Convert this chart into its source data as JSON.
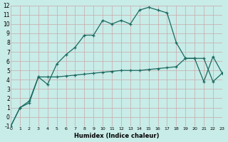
{
  "xlabel": "Humidex (Indice chaleur)",
  "bg_color": "#c8ece8",
  "grid_color": "#c8a8a8",
  "line_color": "#1a6a60",
  "x_curve1": [
    0,
    1,
    2,
    3,
    4,
    5,
    6,
    7,
    8,
    9,
    10,
    11,
    12,
    13,
    14,
    15,
    16,
    17,
    18,
    19,
    20,
    21,
    22,
    23
  ],
  "y_curve1": [
    -1,
    1,
    1.5,
    4.3,
    3.5,
    5.7,
    6.7,
    7.5,
    8.8,
    8.8,
    10.4,
    10.0,
    10.4,
    10.0,
    11.5,
    11.8,
    11.5,
    11.2,
    8.0,
    6.3,
    6.3,
    3.8,
    6.5,
    4.7
  ],
  "x_curve2": [
    0,
    1,
    2,
    3,
    4,
    5,
    6,
    7,
    8,
    9,
    10,
    11,
    12,
    13,
    14,
    15,
    16,
    17,
    18,
    19,
    20,
    21,
    22,
    23
  ],
  "y_curve2": [
    -1,
    1.0,
    1.7,
    4.3,
    4.3,
    4.3,
    4.4,
    4.5,
    4.6,
    4.7,
    4.8,
    4.9,
    5.0,
    5.0,
    5.0,
    5.1,
    5.2,
    5.3,
    5.4,
    6.3,
    6.3,
    6.3,
    3.8,
    4.7
  ],
  "ylim": [
    -1,
    12
  ],
  "xlim": [
    0,
    23
  ],
  "yticks": [
    -1,
    0,
    1,
    2,
    3,
    4,
    5,
    6,
    7,
    8,
    9,
    10,
    11,
    12
  ],
  "xticks": [
    0,
    1,
    2,
    3,
    4,
    5,
    6,
    7,
    8,
    9,
    10,
    11,
    12,
    13,
    14,
    15,
    16,
    17,
    18,
    19,
    20,
    21,
    22,
    23
  ]
}
